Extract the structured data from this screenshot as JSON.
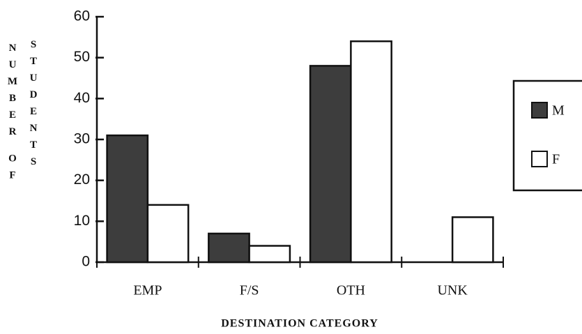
{
  "chart_data": {
    "type": "bar",
    "y_label": [
      "NUMBER OF",
      "STUDENTS"
    ],
    "x_label": "DESTINATION CATEGORY",
    "categories": [
      "EMP",
      "F/S",
      "OTH",
      "UNK"
    ],
    "series": [
      {
        "name": "M",
        "color": "#3d3d3d",
        "values": [
          31,
          7,
          48,
          0
        ]
      },
      {
        "name": "F",
        "color": "#ffffff",
        "values": [
          14,
          4,
          54,
          11
        ]
      }
    ],
    "ylim": [
      0,
      60
    ],
    "yticks": [
      0,
      10,
      20,
      30,
      40,
      50,
      60
    ],
    "grid": false,
    "legend": "right"
  }
}
